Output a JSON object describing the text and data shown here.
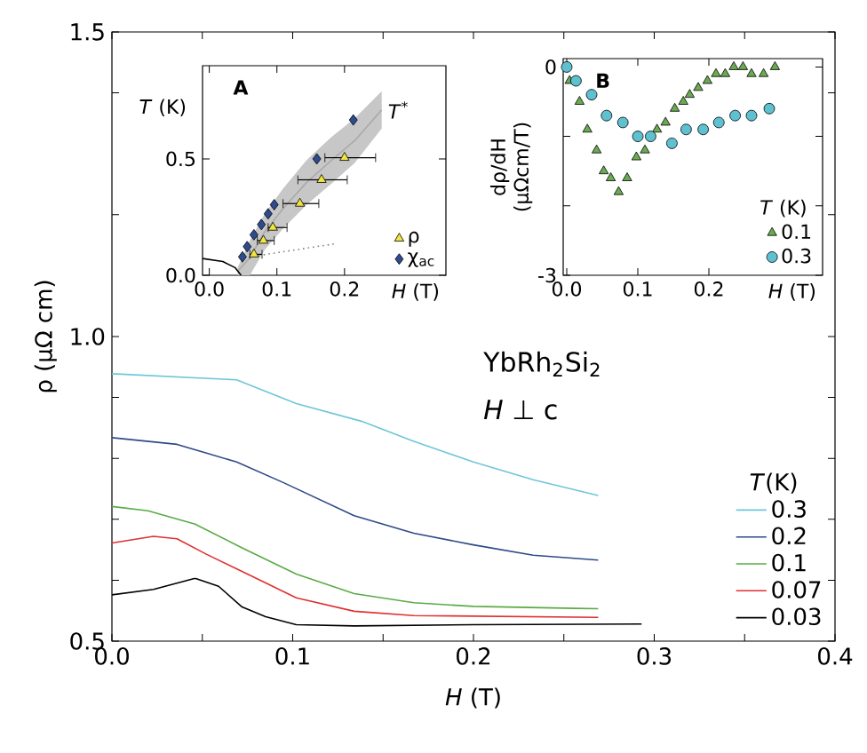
{
  "chart_data": [
    {
      "type": "line",
      "xlabel": "*H* (T)",
      "ylabel": "ρ (μΩ cm)",
      "legend_title": "*T*(K)",
      "legend": "bottom right",
      "xlim": [
        0,
        0.4
      ],
      "ylim": [
        0.5,
        1.5
      ],
      "xticks": [
        {
          "value": 0,
          "label": "0.0"
        },
        {
          "value": 0.05,
          "label": null
        },
        0.1,
        {
          "value": 0.15,
          "label": null
        },
        0.2,
        {
          "value": 0.25,
          "label": null
        },
        0.3,
        {
          "value": 0.35,
          "label": null
        },
        0.4
      ],
      "yticks": [
        0.5,
        {
          "value": 0.6,
          "label": null
        },
        {
          "value": 0.7,
          "label": null
        },
        {
          "value": 0.8,
          "label": null
        },
        {
          "value": 0.9,
          "label": null
        },
        {
          "value": 1,
          "label": "1.0"
        },
        {
          "value": 1.2,
          "label": null
        },
        {
          "value": 1.4,
          "label": null
        },
        1.5
      ],
      "annotations": [
        "YbRh$_{2}$Si$_{2}$",
        "*H* ⊥ c"
      ],
      "series": [
        {
          "name": "0.3",
          "color": "#6ec6d8",
          "x": [
            0,
            0.069,
            0.102,
            0.138,
            0.167,
            0.2,
            0.233,
            0.269
          ],
          "values": [
            0.939,
            0.929,
            0.89,
            0.861,
            0.828,
            0.794,
            0.765,
            0.739
          ]
        },
        {
          "name": "0.2",
          "color": "#2e4a8a",
          "x": [
            0,
            0.036,
            0.069,
            0.095,
            0.134,
            0.167,
            0.2,
            0.233,
            0.269
          ],
          "values": [
            0.834,
            0.823,
            0.794,
            0.76,
            0.706,
            0.677,
            0.658,
            0.641,
            0.633
          ]
        },
        {
          "name": "0.1",
          "color": "#5aaa46",
          "x": [
            0,
            0.02,
            0.046,
            0.072,
            0.102,
            0.134,
            0.167,
            0.2,
            0.269
          ],
          "values": [
            0.721,
            0.714,
            0.692,
            0.653,
            0.61,
            0.578,
            0.563,
            0.557,
            0.553
          ]
        },
        {
          "name": "0.07",
          "color": "#e03030",
          "x": [
            0,
            0.023,
            0.036,
            0.052,
            0.075,
            0.102,
            0.134,
            0.167,
            0.269
          ],
          "values": [
            0.661,
            0.672,
            0.668,
            0.643,
            0.61,
            0.571,
            0.549,
            0.542,
            0.539
          ]
        },
        {
          "name": "0.03",
          "color": "#000000",
          "x": [
            0,
            0.023,
            0.046,
            0.059,
            0.072,
            0.085,
            0.102,
            0.134,
            0.2,
            0.293
          ],
          "values": [
            0.576,
            0.585,
            0.603,
            0.59,
            0.556,
            0.54,
            0.527,
            0.525,
            0.527,
            0.528
          ]
        }
      ]
    },
    {
      "type": "scatter",
      "title": "A",
      "xlabel": "*H* (T)",
      "ylabel": "*T* (K)",
      "legend": "bottom right",
      "xlim": [
        -0.01,
        0.35
      ],
      "ylim": [
        0,
        0.9
      ],
      "xticks": [
        {
          "value": 0,
          "label": "0.0"
        },
        0.1,
        0.2
      ],
      "yticks": [
        {
          "value": 0,
          "label": "0.0"
        },
        0.5
      ],
      "series": [
        {
          "name": "*T*$^{*}$",
          "type": "line",
          "color": "#a9a9a9",
          "x": [
            0.042,
            0.06,
            0.082,
            0.109,
            0.144,
            0.18,
            0.215,
            0.255
          ],
          "values": [
            0.017,
            0.075,
            0.187,
            0.286,
            0.399,
            0.492,
            0.578,
            0.71
          ],
          "lower": [
            0,
            0,
            0.11,
            0.2,
            0.303,
            0.392,
            0.482,
            0.63
          ],
          "upper": [
            0.033,
            0.15,
            0.264,
            0.372,
            0.495,
            0.592,
            0.674,
            0.79
          ]
        },
        {
          "type": "line",
          "color": "#000000",
          "x": [
            -0.01,
            0.02,
            0.038,
            0.047
          ],
          "values": [
            0.072,
            0.059,
            0.033,
            0
          ]
        },
        {
          "type": "line",
          "color": "#808080",
          "line_style": "dotted",
          "x": [
            0.073,
            0.188
          ],
          "values": [
            0.085,
            0.136
          ]
        },
        {
          "name": "ρ",
          "type": "scatter",
          "marker": "triangle",
          "color": "#f0e442",
          "x": [
            0.066,
            0.08,
            0.094,
            0.134,
            0.166,
            0.2
          ],
          "values": [
            0.09,
            0.149,
            0.205,
            0.308,
            0.41,
            0.505
          ],
          "xerrors": [
            [
              0.06,
              0.078
            ],
            [
              0.071,
              0.096
            ],
            [
              0.087,
              0.115
            ],
            [
              0.109,
              0.162
            ],
            [
              0.131,
              0.204
            ],
            [
              0.171,
              0.246
            ]
          ]
        },
        {
          "name": "χ$_{ac}$",
          "type": "scatter",
          "marker": "diamond",
          "color": "#2d4b8e",
          "x": [
            0.049,
            0.056,
            0.066,
            0.077,
            0.087,
            0.096,
            0.159,
            0.213
          ],
          "values": [
            0.079,
            0.123,
            0.174,
            0.218,
            0.264,
            0.303,
            0.5,
            0.667
          ]
        }
      ]
    },
    {
      "type": "scatter",
      "title": "B",
      "xlabel": "*H* (T)",
      "ylabel": "dρ/dH (μΩcm/T)",
      "legend_title": "*T* (K)",
      "legend": "bottom right",
      "xlim": [
        -0.005,
        0.36
      ],
      "ylim": [
        -3,
        0.12
      ],
      "xticks": [
        {
          "value": 0,
          "label": "0.0"
        },
        0.1,
        0.2
      ],
      "yticks": [
        0,
        {
          "value": -1,
          "label": null
        },
        {
          "value": -2,
          "label": null
        },
        -3
      ],
      "series": [
        {
          "name": "0.1",
          "marker": "triangle",
          "color": "#6aaa50",
          "x": [
            0.004,
            0.018,
            0.029,
            0.042,
            0.052,
            0.062,
            0.073,
            0.085,
            0.098,
            0.11,
            0.127,
            0.139,
            0.152,
            0.164,
            0.173,
            0.185,
            0.198,
            0.21,
            0.223,
            0.235,
            0.248,
            0.26,
            0.277,
            0.293
          ],
          "values": [
            -0.2,
            -0.5,
            -0.9,
            -1.2,
            -1.5,
            -1.6,
            -1.8,
            -1.6,
            -1.3,
            -1.2,
            -0.9,
            -0.8,
            -0.6,
            -0.5,
            -0.4,
            -0.3,
            -0.2,
            -0.1,
            -0.1,
            0,
            0,
            -0.1,
            -0.1,
            0
          ]
        },
        {
          "name": "0.3",
          "marker": "circle",
          "color": "#5fc0d0",
          "x": [
            0,
            0.013,
            0.035,
            0.056,
            0.079,
            0.1,
            0.118,
            0.148,
            0.168,
            0.192,
            0.214,
            0.237,
            0.26,
            0.285
          ],
          "values": [
            0,
            -0.2,
            -0.4,
            -0.7,
            -0.8,
            -1,
            -1,
            -1.1,
            -0.9,
            -0.9,
            -0.8,
            -0.7,
            -0.7,
            -0.6
          ]
        }
      ]
    }
  ]
}
